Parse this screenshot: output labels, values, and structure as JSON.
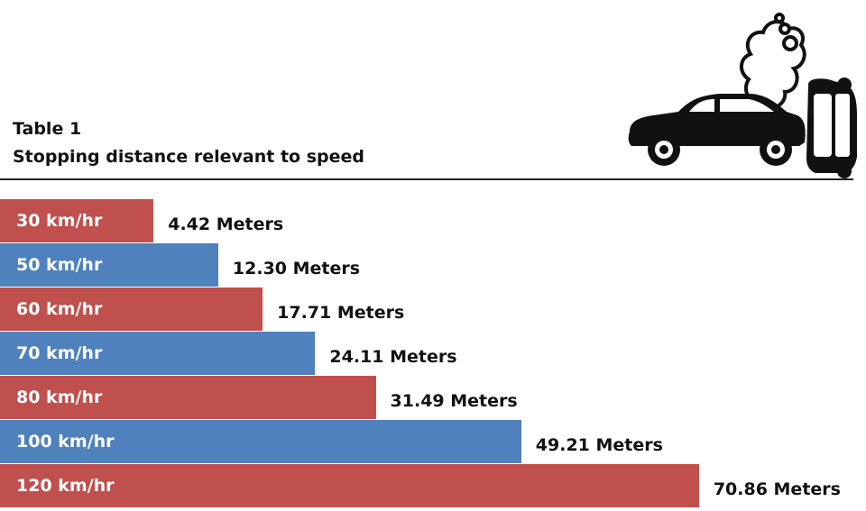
{
  "title": {
    "line1": "Table 1",
    "line2": "Stopping distance relevant to speed"
  },
  "illustration": {
    "icon": "car-crash-icon",
    "car_color": "#111111"
  },
  "colors": {
    "red": "#c0504d",
    "blue": "#4f81bd"
  },
  "chart_data": {
    "type": "bar",
    "orientation": "horizontal",
    "title": "Stopping distance relevant to speed",
    "categories": [
      "30 km/hr",
      "50 km/hr",
      "60 km/hr",
      "70 km/hr",
      "80 km/hr",
      "100 km/hr",
      "120 km/hr"
    ],
    "values": [
      4.42,
      12.3,
      17.71,
      24.11,
      31.49,
      49.21,
      70.86
    ],
    "value_labels": [
      "4.42 Meters",
      "12.30 Meters",
      "17.71 Meters",
      "24.11 Meters",
      "31.49 Meters",
      "49.21 Meters",
      "70.86 Meters"
    ],
    "bar_colors": [
      "#c0504d",
      "#4f81bd",
      "#c0504d",
      "#4f81bd",
      "#c0504d",
      "#4f81bd",
      "#c0504d"
    ],
    "unit": "Meters",
    "grid": false,
    "legend": "none"
  }
}
